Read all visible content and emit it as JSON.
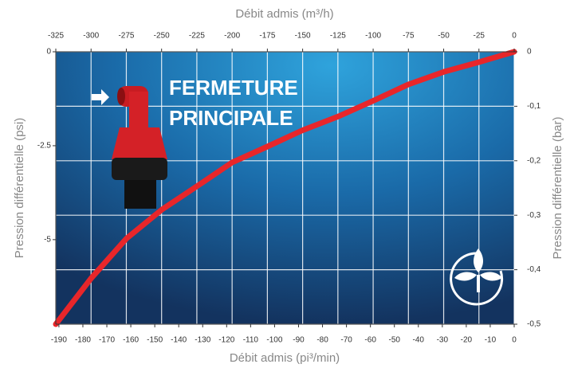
{
  "chart_data": {
    "type": "line",
    "xlabel": "Débit admis (m³/h)",
    "x2label": "Débit admis (pi³/min)",
    "ylabel": "Pression différentielle  (psi)",
    "y2label": "Pression différentielle  (bar)",
    "annotation": [
      "FERMETURE",
      "PRINCIPALE"
    ],
    "xlim": [
      -325,
      0
    ],
    "xticks": [
      -325,
      -300,
      -275,
      -250,
      -225,
      -200,
      -175,
      -150,
      -125,
      -100,
      -75,
      -50,
      -25,
      0
    ],
    "x2lim": [
      -191.3,
      0
    ],
    "x2ticks": [
      -190,
      -180,
      -170,
      -160,
      -150,
      -140,
      -130,
      -120,
      -110,
      -100,
      -90,
      -80,
      -70,
      -60,
      -50,
      -40,
      -30,
      -20,
      -10,
      0
    ],
    "ylim": [
      -7.25,
      0
    ],
    "yticks": [
      0,
      -2.5,
      -5
    ],
    "y2lim": [
      -0.5,
      0
    ],
    "y2ticks": [
      0,
      {
        "value": -0.1,
        "label": "-0,1"
      },
      {
        "value": -0.2,
        "label": "-0,2"
      },
      {
        "value": -0.3,
        "label": "-0,3"
      },
      {
        "value": -0.4,
        "label": "-0,4"
      },
      {
        "value": -0.5,
        "label": "-0,5"
      }
    ],
    "grid": true,
    "x": [
      -325,
      -300,
      -275,
      -250,
      -225,
      -200,
      -175,
      -150,
      -125,
      -100,
      -75,
      -50,
      -25,
      0
    ],
    "series": [
      {
        "name": "Fermeture principale",
        "color": "#e8262a",
        "axis": "y2",
        "values": [
          -0.5,
          -0.416,
          -0.343,
          -0.29,
          -0.247,
          -0.203,
          -0.174,
          -0.144,
          -0.119,
          -0.09,
          -0.06,
          -0.037,
          -0.019,
          0
        ]
      }
    ]
  }
}
